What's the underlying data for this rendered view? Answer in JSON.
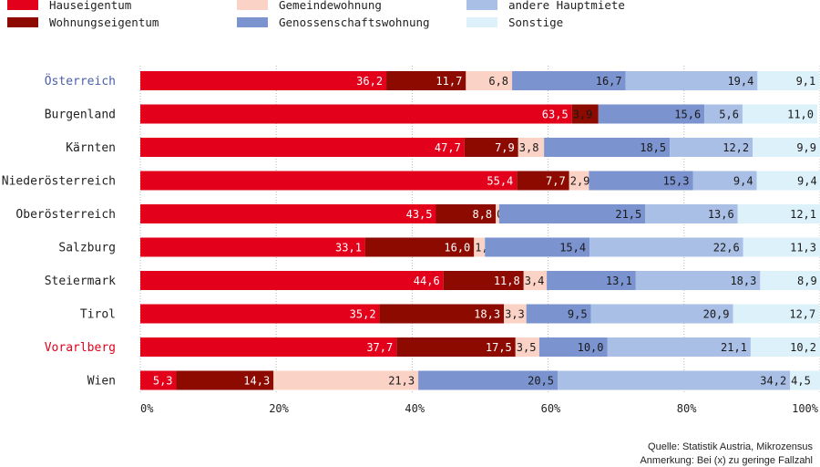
{
  "chart_data": {
    "type": "bar",
    "orientation": "horizontal",
    "stacked": true,
    "categories": [
      "Österreich",
      "Burgenland",
      "Kärnten",
      "Niederösterreich",
      "Oberösterreich",
      "Salzburg",
      "Steiermark",
      "Tirol",
      "Vorarlberg",
      "Wien"
    ],
    "category_colors": {
      "Österreich": "#4a5fa8",
      "Vorarlberg": "#e2001a"
    },
    "series": [
      {
        "name": "Hauseigentum",
        "color": "#e2001a",
        "values": [
          36.2,
          63.5,
          47.7,
          55.4,
          43.5,
          33.1,
          44.6,
          35.2,
          37.7,
          5.3
        ],
        "labels": [
          "36,2",
          "63,5",
          "47,7",
          "55,4",
          "43,5",
          "33,1",
          "44,6",
          "35,2",
          "37,7",
          "5,3"
        ]
      },
      {
        "name": "Wohnungseigentum",
        "color": "#8c0a00",
        "values": [
          11.7,
          3.9,
          7.9,
          7.7,
          8.8,
          16.0,
          11.8,
          18.3,
          17.5,
          14.3
        ],
        "labels": [
          "11,7",
          "3,9",
          "7,9",
          "7,7",
          "8,8",
          "16,0",
          "11,8",
          "18,3",
          "17,5",
          "14,3"
        ]
      },
      {
        "name": "Gemeindewohnung",
        "color": "#fbd3c6",
        "values": [
          6.8,
          0,
          3.8,
          2.9,
          0.5,
          1.6,
          3.4,
          3.3,
          3.5,
          21.3
        ],
        "labels": [
          "6,8",
          "(x)",
          "3,8",
          "2,9",
          "0,5",
          "1,6",
          "3,4",
          "3,3",
          "3,5",
          "21,3"
        ]
      },
      {
        "name": "Genossenschaftswohnung",
        "color": "#7b93cf",
        "values": [
          16.7,
          15.6,
          18.5,
          15.3,
          21.5,
          15.4,
          13.1,
          9.5,
          10.0,
          20.5
        ],
        "labels": [
          "16,7",
          "15,6",
          "18,5",
          "15,3",
          "21,5",
          "15,4",
          "13,1",
          "9,5",
          "10,0",
          "20,5"
        ]
      },
      {
        "name": "andere Hauptmiete",
        "color": "#a9bfe6",
        "values": [
          19.4,
          5.6,
          12.2,
          9.4,
          13.6,
          22.6,
          18.3,
          20.9,
          21.1,
          34.2
        ],
        "labels": [
          "19,4",
          "5,6",
          "12,2",
          "9,4",
          "13,6",
          "22,6",
          "18,3",
          "20,9",
          "21,1",
          "34,2"
        ]
      },
      {
        "name": "Sonstige",
        "color": "#ddf1fb",
        "values": [
          9.1,
          11.0,
          9.9,
          9.4,
          12.1,
          11.3,
          8.9,
          12.7,
          10.2,
          4.5
        ],
        "labels": [
          "9,1",
          "11,0",
          "9,9",
          "9,4",
          "12,1",
          "11,3",
          "8,9",
          "12,7",
          "10,2",
          "4,5"
        ]
      }
    ],
    "x_ticks": [
      0,
      20,
      40,
      60,
      80,
      100
    ],
    "x_tick_labels": [
      "0%",
      "20%",
      "40%",
      "60%",
      "80%",
      "100%"
    ],
    "xlim": [
      0,
      100
    ],
    "grid": true,
    "legend_placement": "top"
  },
  "footer": {
    "source": "Quelle: Statistik Austria, Mikrozensus",
    "note": "Anmerkung: Bei (x) zu geringe Fallzahl"
  }
}
